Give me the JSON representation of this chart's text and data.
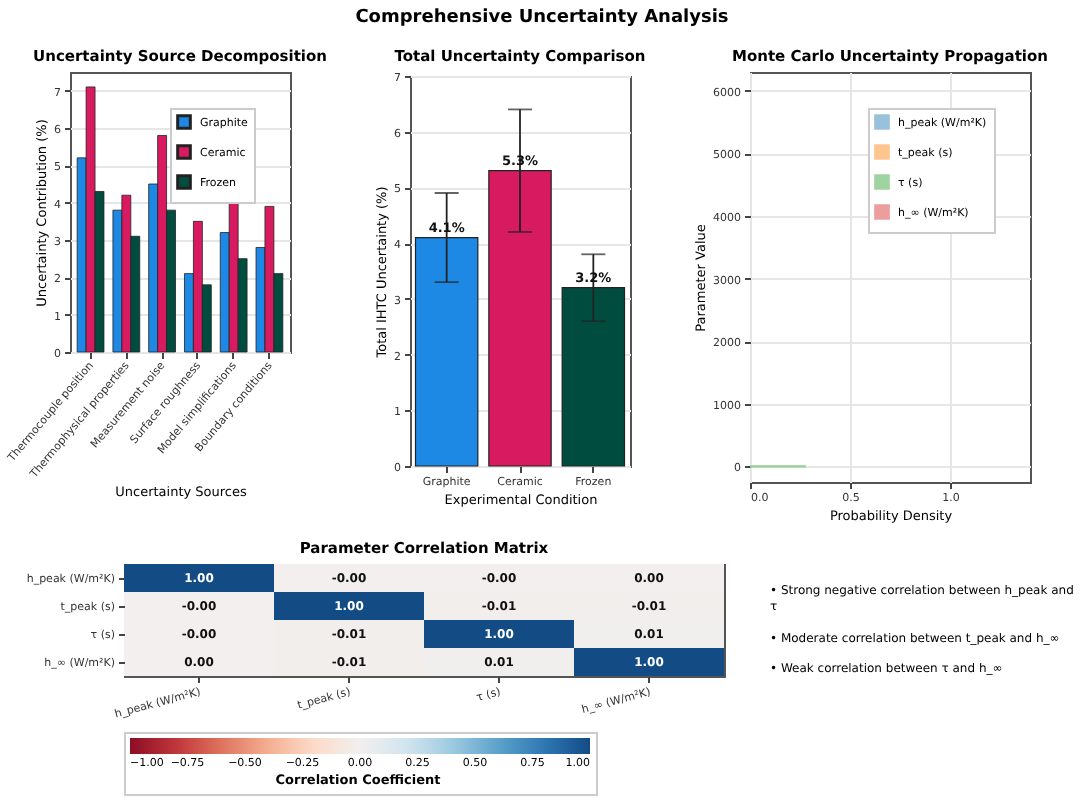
{
  "chart_data": [
    {
      "type": "other",
      "title": "Comprehensive Uncertainty Analysis"
    },
    {
      "type": "bar",
      "title": "Uncertainty Source Decomposition",
      "xlabel": "Uncertainty Sources",
      "ylabel": "Uncertainty Contribution (%)",
      "categories": [
        "Thermocouple position",
        "Thermophysical properties",
        "Measurement noise",
        "Surface roughness",
        "Model simplifications",
        "Boundary conditions"
      ],
      "series": [
        {
          "name": "Graphite",
          "color": "#1e88e5",
          "values": [
            5.2,
            3.8,
            4.5,
            2.1,
            3.2,
            2.8
          ]
        },
        {
          "name": "Ceramic",
          "color": "#d81b60",
          "values": [
            7.1,
            4.2,
            5.8,
            3.5,
            4.1,
            3.9
          ]
        },
        {
          "name": "Frozen",
          "color": "#004d40",
          "values": [
            4.3,
            3.1,
            3.8,
            1.8,
            2.5,
            2.1
          ]
        }
      ],
      "ylim": [
        0,
        7.5
      ],
      "yticks": [
        0,
        1,
        2,
        3,
        4,
        5,
        6,
        7
      ],
      "grid": "y",
      "legend": "top right"
    },
    {
      "type": "bar",
      "title": "Total Uncertainty Comparison",
      "xlabel": "Experimental Condition",
      "ylabel": "Total IHTC Uncertainty (%)",
      "categories": [
        "Graphite",
        "Ceramic",
        "Frozen"
      ],
      "values": [
        4.1,
        5.3,
        3.2
      ],
      "colors": [
        "#1e88e5",
        "#d81b60",
        "#004d40"
      ],
      "errors": [
        0.8,
        1.1,
        0.6
      ],
      "value_labels": [
        "4.1%",
        "5.3%",
        "3.2%"
      ],
      "ylim": [
        0,
        7
      ],
      "yticks": [
        0,
        1,
        2,
        3,
        4,
        5,
        6,
        7
      ],
      "grid": "y"
    },
    {
      "type": "area",
      "title": "Monte Carlo Uncertainty Propagation",
      "xlabel": "Probability Density",
      "ylabel": "Parameter Value",
      "x": [
        0,
        0.28
      ],
      "series": [
        {
          "name": "h_peak (W/m²K)",
          "color": "#8fbbd9",
          "values": [
            null,
            null
          ]
        },
        {
          "name": "t_peak (s)",
          "color": "#ffbf86",
          "values": [
            null,
            null
          ]
        },
        {
          "name": "τ (s)",
          "color": "#95cf95",
          "type": "line",
          "values": [
            0,
            0
          ]
        },
        {
          "name": "h_∞ (W/m²K)",
          "color": "#eb9393",
          "values": [
            null,
            null
          ]
        }
      ],
      "xlim": [
        0,
        1.4
      ],
      "xticks": [
        {
          "value": 0,
          "label": "0.0"
        },
        0.5,
        {
          "value": 1,
          "label": "1.0"
        }
      ],
      "ylim": [
        -250,
        6300
      ],
      "yticks": [
        0,
        1000,
        2000,
        3000,
        4000,
        5000,
        6000
      ],
      "grid": true,
      "legend": "top right"
    },
    {
      "type": "heatmap",
      "title": "Parameter Correlation Matrix",
      "categories": [
        "h_peak (W/m²K)",
        "t_peak (s)",
        "τ (s)",
        "h_∞ (W/m²K)"
      ],
      "y_categories": [
        "h_peak (W/m²K)",
        "t_peak (s)",
        "τ (s)",
        "h_∞ (W/m²K)"
      ],
      "cells": [
        [
          1,
          0,
          0,
          0
        ],
        [
          0,
          1,
          -0.01,
          -0.01
        ],
        [
          0,
          -0.01,
          1,
          0.01
        ],
        [
          0,
          -0.01,
          0.01,
          1
        ]
      ],
      "cell_labels": [
        [
          "1.00",
          "-0.00",
          "-0.00",
          "0.00"
        ],
        [
          "-0.00",
          "1.00",
          "-0.01",
          "-0.01"
        ],
        [
          "-0.00",
          "-0.01",
          "1.00",
          "0.01"
        ],
        [
          "0.00",
          "-0.01",
          "0.01",
          "1.00"
        ]
      ],
      "clim": [
        -1,
        1
      ],
      "cticks": [
        {
          "value": -1,
          "label": "−1.00"
        },
        {
          "value": -0.75,
          "label": "−0.75"
        },
        {
          "value": -0.5,
          "label": "−0.50"
        },
        {
          "value": -0.25,
          "label": "−0.25"
        },
        {
          "value": 0,
          "label": "0.00"
        },
        {
          "value": 0.25,
          "label": "0.25"
        },
        {
          "value": 0.5,
          "label": "0.50"
        },
        {
          "value": 0.75,
          "label": "0.75"
        },
        {
          "value": 1,
          "label": "1.00"
        }
      ],
      "clabel": "Correlation Coefficient",
      "annotations": [
        "• Strong negative correlation between h_peak and τ",
        "• Moderate correlation between t_peak and h_∞",
        "• Weak correlation between τ and h_∞"
      ]
    }
  ]
}
